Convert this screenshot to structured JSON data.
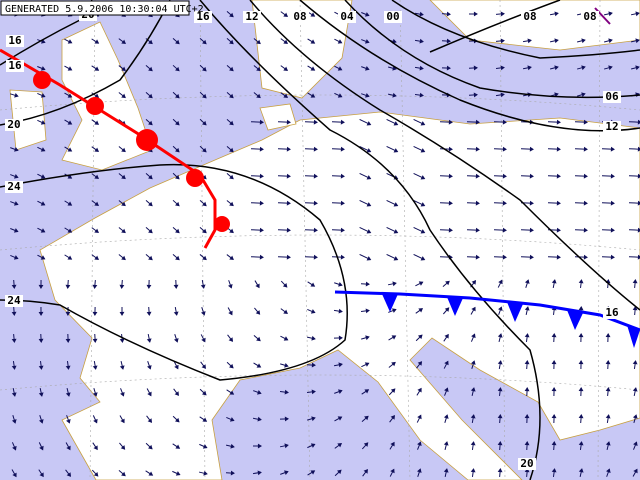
{
  "header": {
    "generated": "GENERATED 5.9.2006 10:30:04 UTC+2"
  },
  "isobar_labels": [
    "16",
    "16",
    "20",
    "24",
    "24",
    "20",
    "16",
    "12",
    "08",
    "04",
    "00",
    "08",
    "08",
    "06",
    "12",
    "16",
    "20"
  ]
}
